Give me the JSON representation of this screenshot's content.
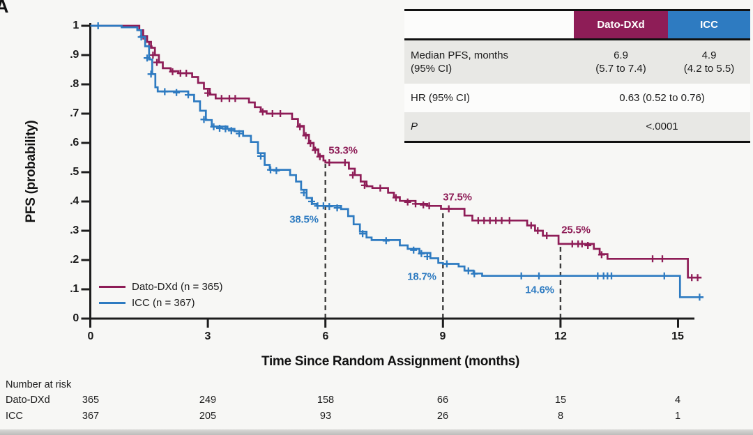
{
  "panel_label": "A",
  "colors": {
    "dato": "#8e1d57",
    "icc": "#2e7bc1",
    "axis": "#1d1d1d",
    "dashed": "#3c3c3c"
  },
  "stats_table": {
    "columns": {
      "dato": "Dato-DXd",
      "icc": "ICC"
    },
    "median_row": {
      "label_line1": "Median PFS, months",
      "label_line2": "(95% CI)",
      "dato_line1": "6.9",
      "dato_line2": "(5.7 to 7.4)",
      "icc_line1": "4.9",
      "icc_line2": "(4.2 to 5.5)"
    },
    "hr_row": {
      "label": "HR (95% CI)",
      "value": "0.63 (0.52 to 0.76)"
    },
    "p_row": {
      "label": "P",
      "value": "<.0001"
    }
  },
  "chart_data": {
    "type": "line",
    "subtype": "kaplan-meier-step",
    "title": "",
    "xlabel": "Time Since Random Assignment (months)",
    "ylabel": "PFS (probability)",
    "xlim": [
      0,
      15.8
    ],
    "ylim": [
      0,
      1
    ],
    "grid": false,
    "legend_position": "lower-left",
    "x_tick_values": [
      0,
      3,
      6,
      9,
      12,
      15
    ],
    "x_tick_labels": [
      "0",
      "3",
      "6",
      "9",
      "12",
      "15"
    ],
    "y_tick_values": [
      1,
      0.9,
      0.8,
      0.7,
      0.6,
      0.5,
      0.4,
      0.3,
      0.2,
      0.1,
      0
    ],
    "y_tick_labels": [
      "1",
      ".9",
      ".8",
      ".7",
      ".6",
      ".5",
      ".4",
      ".3",
      ".2",
      ".1",
      "0"
    ],
    "series": [
      {
        "key": "dato",
        "name": "Dato-DXd (n = 365)",
        "color": "#8e1d57",
        "end_month": 15.6,
        "steps": [
          [
            0,
            1.0
          ],
          [
            1.25,
            0.985
          ],
          [
            1.35,
            0.965
          ],
          [
            1.45,
            0.945
          ],
          [
            1.55,
            0.925
          ],
          [
            1.65,
            0.9
          ],
          [
            1.75,
            0.875
          ],
          [
            1.85,
            0.855
          ],
          [
            2.05,
            0.845
          ],
          [
            2.25,
            0.838
          ],
          [
            2.6,
            0.825
          ],
          [
            2.75,
            0.805
          ],
          [
            2.9,
            0.785
          ],
          [
            3.05,
            0.765
          ],
          [
            3.2,
            0.752
          ],
          [
            4.05,
            0.738
          ],
          [
            4.2,
            0.722
          ],
          [
            4.35,
            0.708
          ],
          [
            4.5,
            0.7
          ],
          [
            5.15,
            0.682
          ],
          [
            5.3,
            0.658
          ],
          [
            5.45,
            0.628
          ],
          [
            5.58,
            0.6
          ],
          [
            5.7,
            0.578
          ],
          [
            5.82,
            0.556
          ],
          [
            5.95,
            0.54
          ],
          [
            6.0,
            0.533
          ],
          [
            6.6,
            0.512
          ],
          [
            6.75,
            0.49
          ],
          [
            6.9,
            0.468
          ],
          [
            7.05,
            0.452
          ],
          [
            7.2,
            0.446
          ],
          [
            7.6,
            0.43
          ],
          [
            7.75,
            0.415
          ],
          [
            7.9,
            0.402
          ],
          [
            8.3,
            0.392
          ],
          [
            8.6,
            0.385
          ],
          [
            8.95,
            0.375
          ],
          [
            9.55,
            0.352
          ],
          [
            9.75,
            0.335
          ],
          [
            11.15,
            0.318
          ],
          [
            11.35,
            0.3
          ],
          [
            11.55,
            0.283
          ],
          [
            11.95,
            0.255
          ],
          [
            12.85,
            0.238
          ],
          [
            13.0,
            0.22
          ],
          [
            13.2,
            0.204
          ],
          [
            15.25,
            0.14
          ]
        ],
        "censors": [
          [
            1.35,
            0.965
          ],
          [
            1.5,
            0.93
          ],
          [
            1.6,
            0.9
          ],
          [
            1.7,
            0.875
          ],
          [
            2.1,
            0.843
          ],
          [
            2.3,
            0.838
          ],
          [
            2.45,
            0.838
          ],
          [
            3.0,
            0.77
          ],
          [
            3.35,
            0.752
          ],
          [
            3.55,
            0.752
          ],
          [
            3.7,
            0.752
          ],
          [
            4.4,
            0.706
          ],
          [
            4.65,
            0.7
          ],
          [
            4.85,
            0.7
          ],
          [
            5.35,
            0.655
          ],
          [
            5.5,
            0.625
          ],
          [
            5.62,
            0.598
          ],
          [
            5.74,
            0.575
          ],
          [
            5.86,
            0.553
          ],
          [
            6.1,
            0.533
          ],
          [
            6.5,
            0.533
          ],
          [
            6.7,
            0.49
          ],
          [
            7.0,
            0.455
          ],
          [
            7.4,
            0.446
          ],
          [
            7.8,
            0.413
          ],
          [
            8.1,
            0.398
          ],
          [
            8.3,
            0.392
          ],
          [
            8.5,
            0.388
          ],
          [
            8.65,
            0.385
          ],
          [
            9.15,
            0.375
          ],
          [
            9.9,
            0.335
          ],
          [
            10.05,
            0.335
          ],
          [
            10.2,
            0.335
          ],
          [
            10.35,
            0.335
          ],
          [
            10.5,
            0.335
          ],
          [
            10.7,
            0.335
          ],
          [
            11.25,
            0.318
          ],
          [
            11.42,
            0.3
          ],
          [
            11.65,
            0.283
          ],
          [
            12.3,
            0.255
          ],
          [
            12.45,
            0.255
          ],
          [
            12.55,
            0.255
          ],
          [
            12.7,
            0.25
          ],
          [
            13.05,
            0.218
          ],
          [
            14.35,
            0.204
          ],
          [
            14.6,
            0.204
          ],
          [
            15.35,
            0.14
          ],
          [
            15.5,
            0.14
          ]
        ]
      },
      {
        "key": "icc",
        "name": "ICC (n = 367)",
        "color": "#2e7bc1",
        "end_month": 15.65,
        "steps": [
          [
            0,
            1.0
          ],
          [
            0.8,
            0.995
          ],
          [
            1.2,
            0.985
          ],
          [
            1.3,
            0.962
          ],
          [
            1.4,
            0.93
          ],
          [
            1.5,
            0.885
          ],
          [
            1.58,
            0.835
          ],
          [
            1.66,
            0.79
          ],
          [
            1.72,
            0.776
          ],
          [
            2.5,
            0.764
          ],
          [
            2.65,
            0.742
          ],
          [
            2.8,
            0.71
          ],
          [
            2.95,
            0.678
          ],
          [
            3.1,
            0.656
          ],
          [
            3.5,
            0.648
          ],
          [
            3.68,
            0.64
          ],
          [
            3.9,
            0.624
          ],
          [
            4.1,
            0.603
          ],
          [
            4.28,
            0.565
          ],
          [
            4.45,
            0.525
          ],
          [
            4.58,
            0.508
          ],
          [
            5.1,
            0.49
          ],
          [
            5.25,
            0.468
          ],
          [
            5.38,
            0.44
          ],
          [
            5.52,
            0.412
          ],
          [
            5.66,
            0.392
          ],
          [
            5.78,
            0.385
          ],
          [
            6.4,
            0.374
          ],
          [
            6.58,
            0.35
          ],
          [
            6.72,
            0.322
          ],
          [
            6.88,
            0.297
          ],
          [
            7.05,
            0.277
          ],
          [
            7.18,
            0.268
          ],
          [
            7.9,
            0.25
          ],
          [
            8.1,
            0.238
          ],
          [
            8.4,
            0.224
          ],
          [
            8.68,
            0.206
          ],
          [
            8.88,
            0.19
          ],
          [
            9.0,
            0.187
          ],
          [
            9.4,
            0.178
          ],
          [
            9.55,
            0.164
          ],
          [
            9.78,
            0.154
          ],
          [
            10.0,
            0.146
          ],
          [
            15.05,
            0.073
          ]
        ],
        "censors": [
          [
            0.2,
            1.0
          ],
          [
            1.3,
            0.962
          ],
          [
            1.45,
            0.89
          ],
          [
            1.55,
            0.835
          ],
          [
            1.9,
            0.775
          ],
          [
            2.2,
            0.772
          ],
          [
            2.5,
            0.764
          ],
          [
            2.9,
            0.68
          ],
          [
            3.15,
            0.655
          ],
          [
            3.3,
            0.65
          ],
          [
            3.45,
            0.648
          ],
          [
            3.6,
            0.642
          ],
          [
            3.8,
            0.632
          ],
          [
            4.35,
            0.555
          ],
          [
            4.6,
            0.508
          ],
          [
            4.75,
            0.505
          ],
          [
            5.45,
            0.43
          ],
          [
            5.65,
            0.4
          ],
          [
            5.8,
            0.385
          ],
          [
            5.95,
            0.385
          ],
          [
            6.1,
            0.383
          ],
          [
            6.3,
            0.378
          ],
          [
            6.95,
            0.29
          ],
          [
            7.55,
            0.266
          ],
          [
            8.25,
            0.234
          ],
          [
            8.45,
            0.222
          ],
          [
            8.6,
            0.212
          ],
          [
            9.1,
            0.187
          ],
          [
            9.65,
            0.163
          ],
          [
            9.8,
            0.153
          ],
          [
            11.0,
            0.146
          ],
          [
            11.45,
            0.146
          ],
          [
            12.95,
            0.146
          ],
          [
            13.1,
            0.146
          ],
          [
            13.2,
            0.146
          ],
          [
            13.3,
            0.146
          ],
          [
            14.65,
            0.146
          ],
          [
            15.55,
            0.073
          ]
        ]
      }
    ],
    "dashed_lines": [
      {
        "month": 6,
        "top_value": 0.533
      },
      {
        "month": 9,
        "top_value": 0.375
      },
      {
        "month": 12,
        "top_value": 0.255
      }
    ],
    "landmark_labels": [
      {
        "text": "53.3%",
        "series": "dato",
        "month": 6
      },
      {
        "text": "38.5%",
        "series": "icc",
        "month": 6
      },
      {
        "text": "37.5%",
        "series": "dato",
        "month": 9
      },
      {
        "text": "18.7%",
        "series": "icc",
        "month": 9
      },
      {
        "text": "25.5%",
        "series": "dato",
        "month": 12
      },
      {
        "text": "14.6%",
        "series": "icc",
        "month": 12
      }
    ]
  },
  "risk_table": {
    "title": "Number at risk",
    "months": [
      0,
      3,
      6,
      9,
      12,
      15
    ],
    "rows": [
      {
        "label": "Dato-DXd",
        "values": [
          "365",
          "249",
          "158",
          "66",
          "15",
          "4"
        ]
      },
      {
        "label": "ICC",
        "values": [
          "367",
          "205",
          "93",
          "26",
          "8",
          "1"
        ]
      }
    ]
  }
}
